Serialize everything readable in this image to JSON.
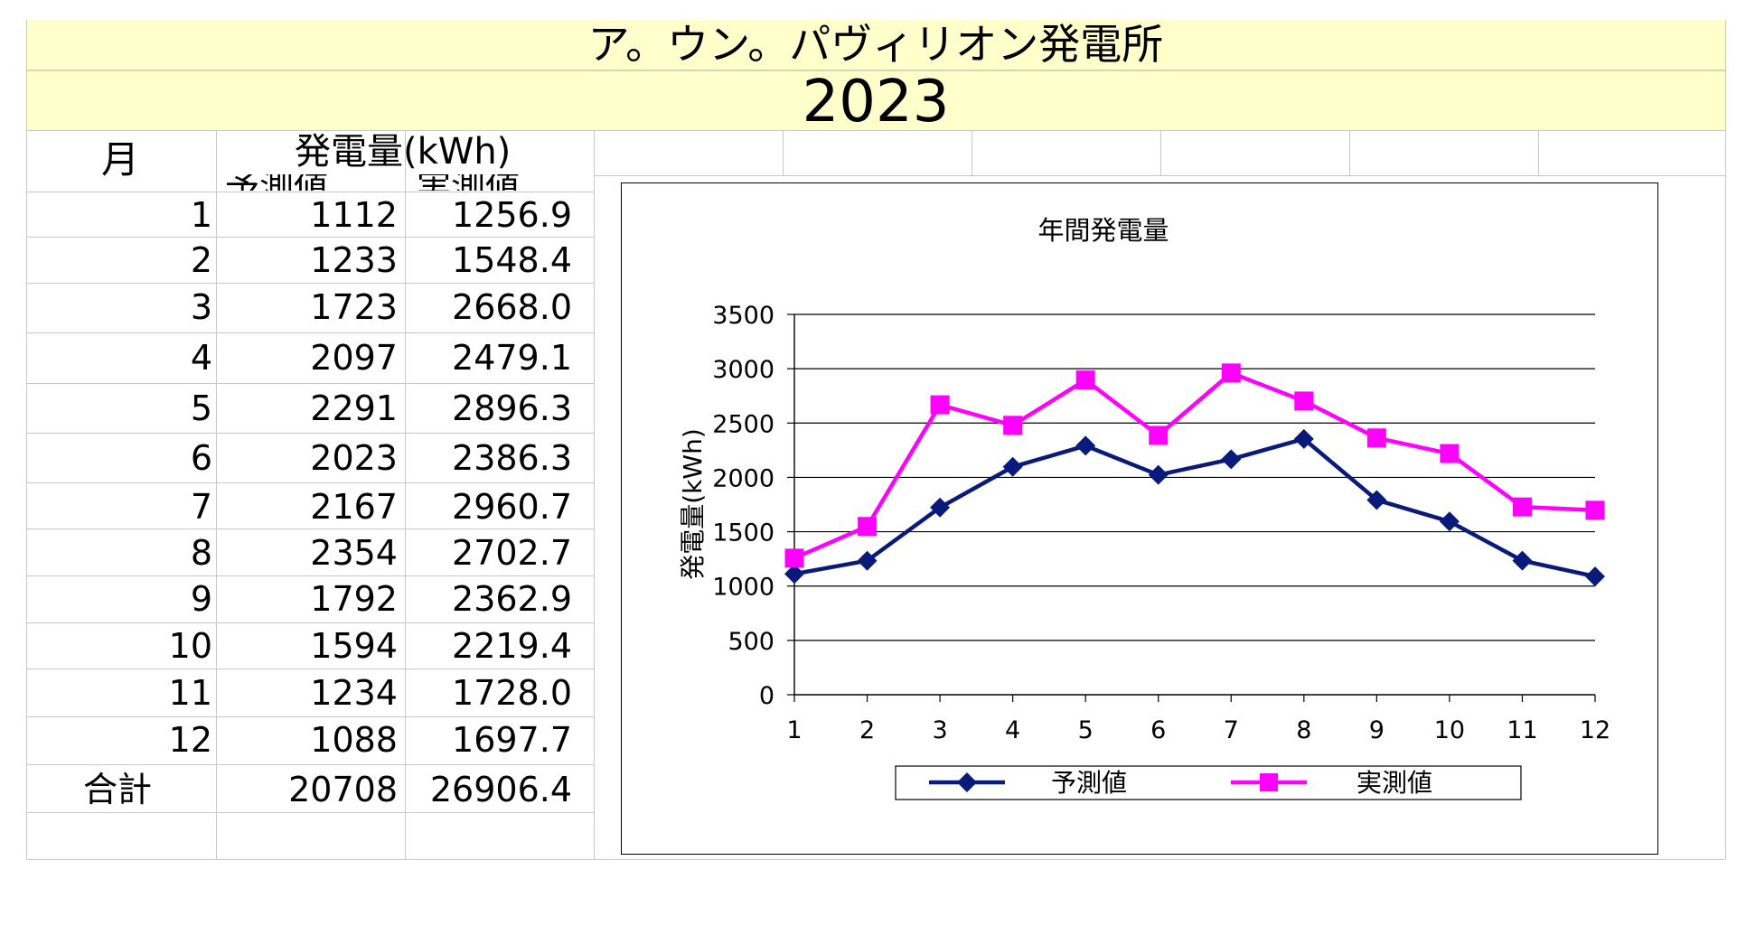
{
  "header": {
    "title": "ア。ウン。パヴィリオン発電所",
    "year": "2023"
  },
  "table": {
    "col_month": "月",
    "col_energy": "発電量(kWh)",
    "col_pred": "予測値",
    "col_actual": "実測値",
    "rows": [
      {
        "month": "1",
        "pred": "1112",
        "actual": "1256.9"
      },
      {
        "month": "2",
        "pred": "1233",
        "actual": "1548.4"
      },
      {
        "month": "3",
        "pred": "1723",
        "actual": "2668.0"
      },
      {
        "month": "4",
        "pred": "2097",
        "actual": "2479.1"
      },
      {
        "month": "5",
        "pred": "2291",
        "actual": "2896.3"
      },
      {
        "month": "6",
        "pred": "2023",
        "actual": "2386.3"
      },
      {
        "month": "7",
        "pred": "2167",
        "actual": "2960.7"
      },
      {
        "month": "8",
        "pred": "2354",
        "actual": "2702.7"
      },
      {
        "month": "9",
        "pred": "1792",
        "actual": "2362.9"
      },
      {
        "month": "10",
        "pred": "1594",
        "actual": "2219.4"
      },
      {
        "month": "11",
        "pred": "1234",
        "actual": "1728.0"
      },
      {
        "month": "12",
        "pred": "1088",
        "actual": "1697.7"
      }
    ],
    "total_label": "合計",
    "total_pred": "20708",
    "total_actual": "26906.4"
  },
  "chart_data": {
    "type": "line",
    "title": "年間発電量",
    "xlabel": "",
    "ylabel": "発電量(kWh)",
    "categories": [
      "1",
      "2",
      "3",
      "4",
      "5",
      "6",
      "7",
      "8",
      "9",
      "10",
      "11",
      "12"
    ],
    "ylim": [
      0,
      3500
    ],
    "yticks": [
      0,
      500,
      1000,
      1500,
      2000,
      2500,
      3000,
      3500
    ],
    "grid": true,
    "legend": "bottom",
    "series": [
      {
        "name": "予測値",
        "color": "#0a1a7a",
        "marker": "diamond",
        "values": [
          1112,
          1233,
          1723,
          2097,
          2291,
          2023,
          2167,
          2354,
          1792,
          1594,
          1234,
          1088
        ]
      },
      {
        "name": "実測値",
        "color": "#ff00ff",
        "marker": "square",
        "values": [
          1256.9,
          1548.4,
          2668.0,
          2479.1,
          2896.3,
          2386.3,
          2960.7,
          2702.7,
          2362.9,
          2219.4,
          1728.0,
          1697.7
        ]
      }
    ]
  }
}
